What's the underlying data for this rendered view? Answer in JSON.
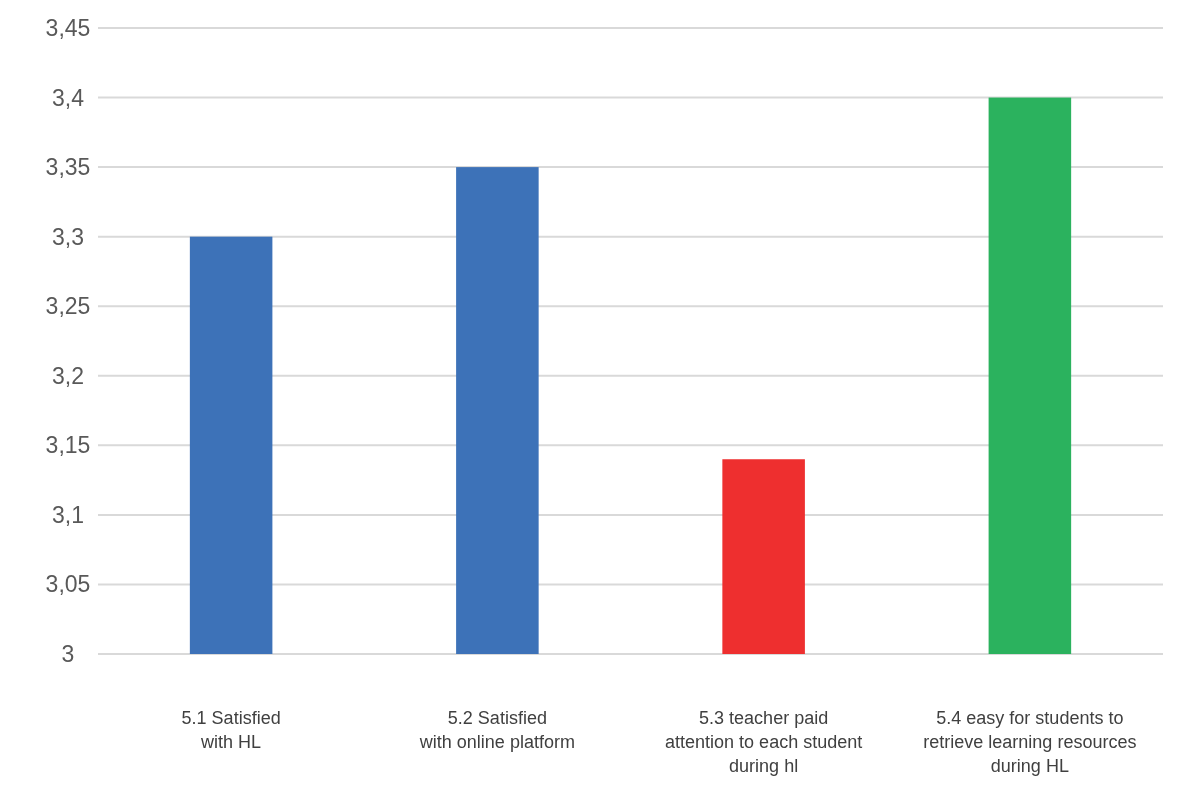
{
  "chart_data": {
    "type": "bar",
    "categories": [
      "5.1 Satisfied\nwith HL",
      "5.2 Satisfied\nwith online platform",
      "5.3 teacher paid\nattention to each student\nduring hl",
      "5.4 easy for students to\nretrieve learning resources\nduring HL"
    ],
    "values": [
      3.3,
      3.35,
      3.14,
      3.4
    ],
    "colors": [
      "#3d72b8",
      "#3d72b8",
      "#ee2f2f",
      "#2bb25e"
    ],
    "ylim": [
      3,
      3.45
    ],
    "yticks": [
      {
        "value": 3,
        "label": "3"
      },
      {
        "value": 3.05,
        "label": "3,05"
      },
      {
        "value": 3.1,
        "label": "3,1"
      },
      {
        "value": 3.15,
        "label": "3,15"
      },
      {
        "value": 3.2,
        "label": "3,2"
      },
      {
        "value": 3.25,
        "label": "3,25"
      },
      {
        "value": 3.3,
        "label": "3,3"
      },
      {
        "value": 3.35,
        "label": "3,35"
      },
      {
        "value": 3.4,
        "label": "3,4"
      },
      {
        "value": 3.45,
        "label": "3,45"
      }
    ],
    "grid": true
  }
}
